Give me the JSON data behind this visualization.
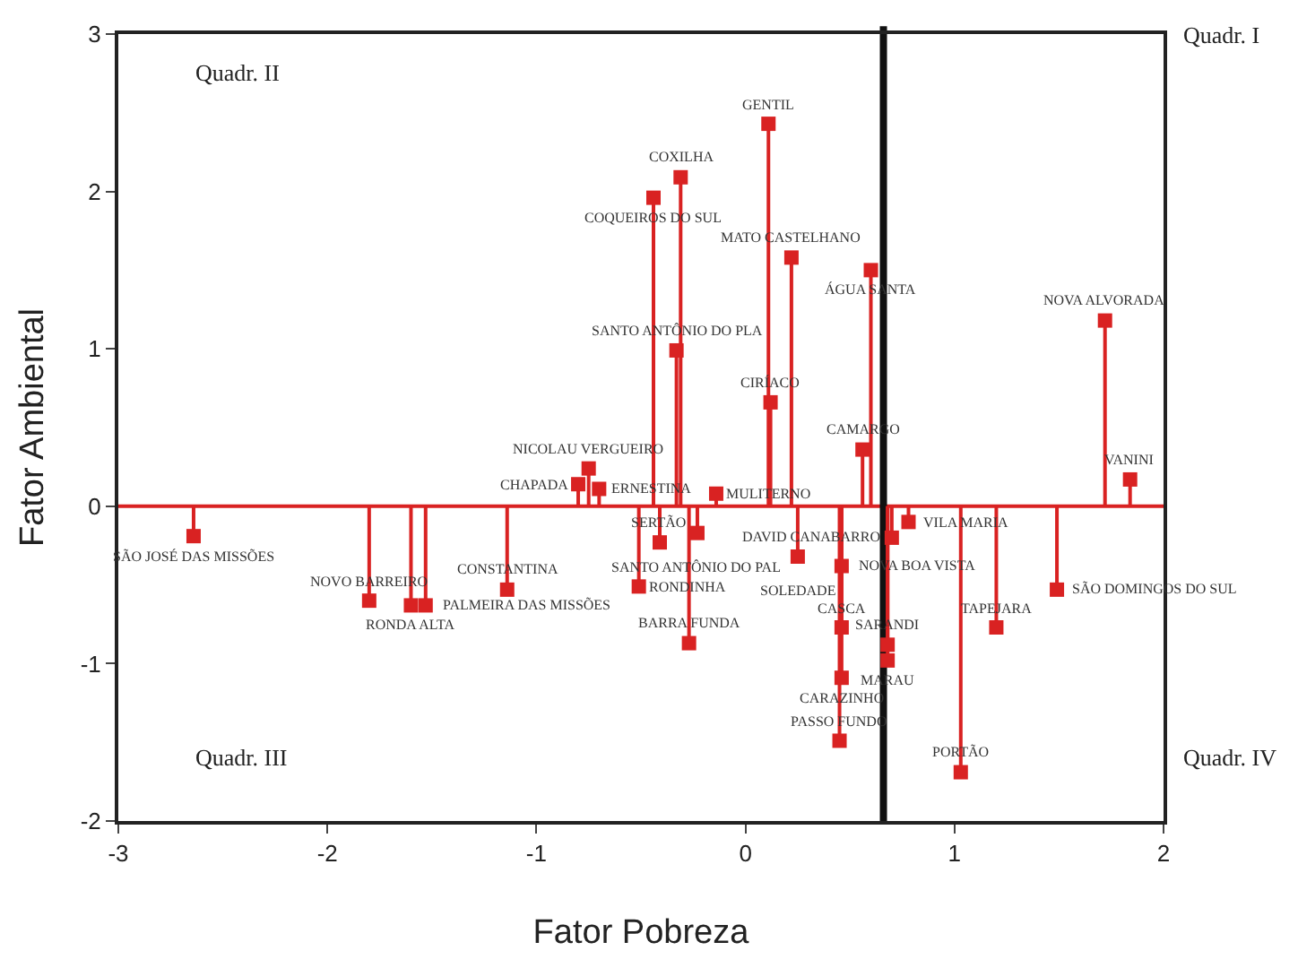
{
  "chart_data": {
    "type": "lollipop",
    "xlabel": "Fator Pobreza",
    "ylabel": "Fator Ambiental",
    "x": [
      -2.64,
      -1.8,
      -1.6,
      -1.53,
      -1.14,
      -0.8,
      -0.75,
      -0.7,
      -0.14,
      -0.23,
      -0.41,
      -0.51,
      -0.27,
      -0.44,
      -0.31,
      0.11,
      0.22,
      0.6,
      -0.33,
      0.12,
      0.56,
      1.72,
      1.84,
      0.78,
      0.7,
      0.25,
      0.46,
      0.46,
      0.68,
      0.68,
      0.46,
      0.45,
      1.03,
      1.2,
      1.49
    ],
    "values": [
      -0.19,
      -0.6,
      -0.63,
      -0.63,
      -0.53,
      0.14,
      0.24,
      0.11,
      0.08,
      -0.17,
      -0.23,
      -0.51,
      -0.87,
      1.96,
      2.09,
      2.43,
      1.58,
      1.5,
      0.99,
      0.66,
      0.36,
      1.18,
      0.17,
      -0.1,
      -0.2,
      -0.32,
      -0.38,
      -0.77,
      -0.88,
      -0.98,
      -1.09,
      -1.49,
      -1.69,
      -0.77,
      -0.53
    ],
    "color": "#d92222",
    "marker": "square",
    "grid": false,
    "xlim": [
      -3,
      2
    ],
    "xticks": [
      -3,
      -2,
      -1,
      0,
      1,
      2
    ],
    "ylim": [
      -2,
      3
    ],
    "yticks": [
      -2,
      -1,
      0,
      1,
      2,
      3
    ],
    "ref_lines": [
      {
        "axis": "y",
        "value": 0,
        "color": "#d92222"
      },
      {
        "axis": "x",
        "value": 0.66,
        "color": "#111111"
      }
    ],
    "annotations": [
      {
        "text": "SÃO JOSÉ DAS MISSÕES",
        "x": -2.64,
        "y": -0.19
      },
      {
        "text": "NOVO BARREIRO",
        "x": -1.8,
        "y": -0.6
      },
      {
        "text": "RONDA ALTA",
        "x": -1.6,
        "y": -0.63
      },
      {
        "text": "PALMEIRA DAS MISSÕES",
        "x": -1.53,
        "y": -0.63
      },
      {
        "text": "CONSTANTINA",
        "x": -1.14,
        "y": -0.53
      },
      {
        "text": "CHAPADA",
        "x": -0.8,
        "y": 0.14
      },
      {
        "text": "NICOLAU VERGUEIRO",
        "x": -0.75,
        "y": 0.24
      },
      {
        "text": "ERNESTINA",
        "x": -0.7,
        "y": 0.11
      },
      {
        "text": "MULITERNO",
        "x": -0.14,
        "y": 0.08
      },
      {
        "text": "SANTO ANTÔNIO DO PAL",
        "x": -0.23,
        "y": -0.17
      },
      {
        "text": "SERTÃO",
        "x": -0.41,
        "y": -0.23
      },
      {
        "text": "RONDINHA",
        "x": -0.51,
        "y": -0.51
      },
      {
        "text": "BARRA FUNDA",
        "x": -0.27,
        "y": -0.87
      },
      {
        "text": "COQUEIROS DO SUL",
        "x": -0.44,
        "y": 1.96
      },
      {
        "text": "COXILHA",
        "x": -0.31,
        "y": 2.09
      },
      {
        "text": "GENTIL",
        "x": 0.11,
        "y": 2.43
      },
      {
        "text": "MATO CASTELHANO",
        "x": 0.22,
        "y": 1.58
      },
      {
        "text": "ÁGUA SANTA",
        "x": 0.6,
        "y": 1.5
      },
      {
        "text": "SANTO ANTÔNIO DO PLA",
        "x": -0.33,
        "y": 0.99
      },
      {
        "text": "CIRÍACO",
        "x": 0.12,
        "y": 0.66
      },
      {
        "text": "CAMARGO",
        "x": 0.56,
        "y": 0.36
      },
      {
        "text": "NOVA ALVORADA",
        "x": 1.72,
        "y": 1.18
      },
      {
        "text": "VANINI",
        "x": 1.84,
        "y": 0.17
      },
      {
        "text": "VILA MARIA",
        "x": 0.78,
        "y": -0.1
      },
      {
        "text": "DAVID CANABARRO",
        "x": 0.7,
        "y": -0.2
      },
      {
        "text": "SOLEDADE",
        "x": 0.25,
        "y": -0.32
      },
      {
        "text": "NOVA BOA VISTA",
        "x": 0.46,
        "y": -0.38
      },
      {
        "text": "CASCA",
        "x": 0.46,
        "y": -0.77
      },
      {
        "text": "SARANDI",
        "x": 0.68,
        "y": -0.88
      },
      {
        "text": "MARAU",
        "x": 0.68,
        "y": -0.98
      },
      {
        "text": "CARAZINHO",
        "x": 0.46,
        "y": -1.09
      },
      {
        "text": "PASSO FUNDO",
        "x": 0.45,
        "y": -1.49
      },
      {
        "text": "PORTÃO",
        "x": 1.03,
        "y": -1.69
      },
      {
        "text": "TAPEJARA",
        "x": 1.2,
        "y": -0.77
      },
      {
        "text": "SÃO DOMINGOS DO SUL",
        "x": 1.49,
        "y": -0.53
      },
      "Quadr. II",
      "Quadr. I",
      "Quadr. III",
      "Quadr. IV"
    ]
  }
}
